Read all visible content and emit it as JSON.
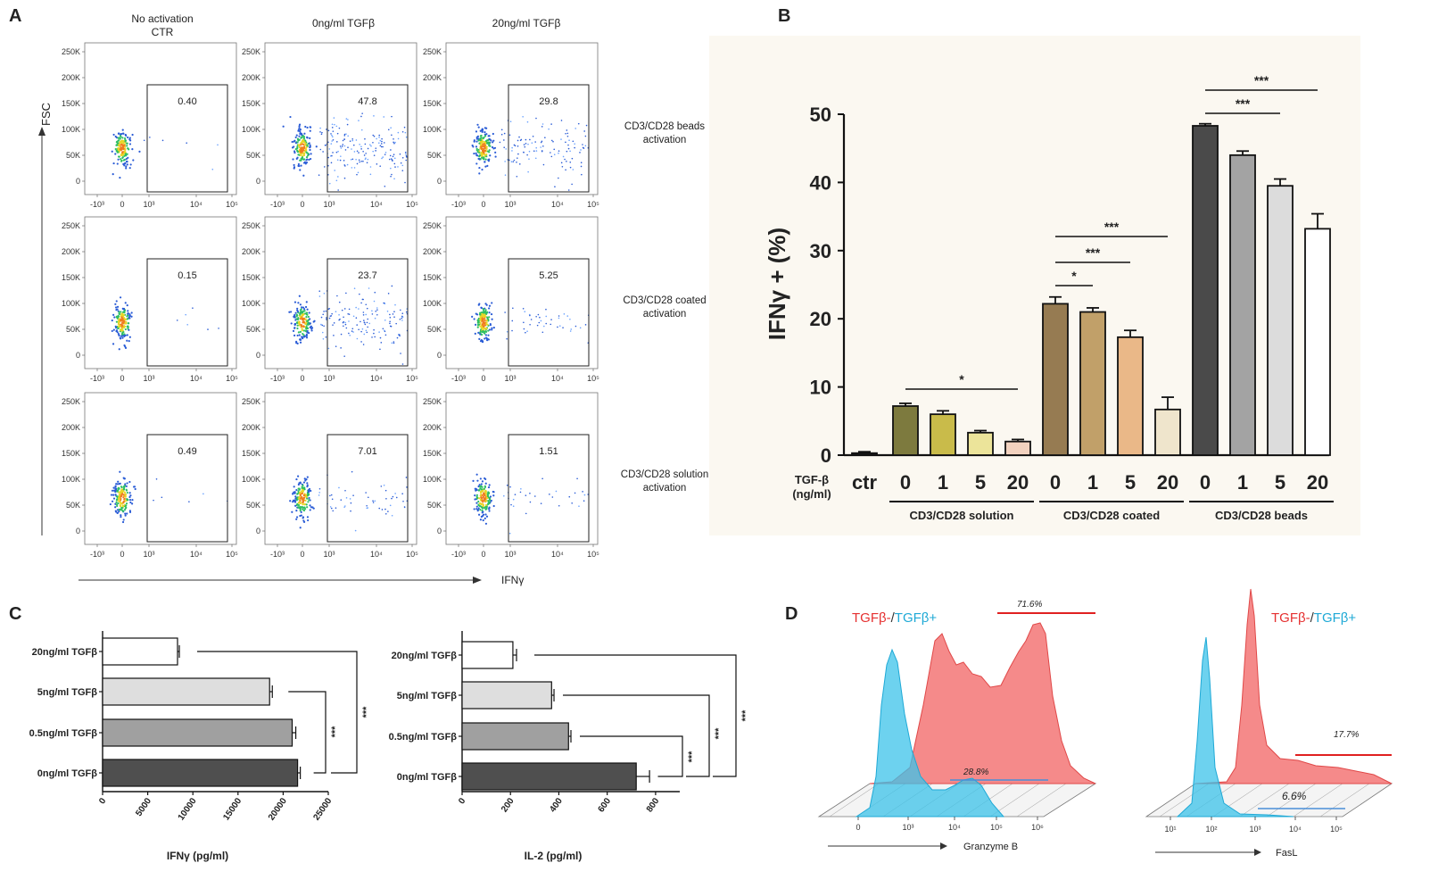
{
  "panel_labels": [
    "A",
    "B",
    "C",
    "D"
  ],
  "panel_a": {
    "columns": [
      "No activation\nCTR",
      "0ng/ml TGFβ",
      "20ng/ml TGFβ"
    ],
    "rows": [
      "CD3/CD28 beads\nactivation",
      "CD3/CD28 coated\nactivation",
      "CD3/CD28  solution\nactivation"
    ],
    "gate_values": [
      [
        "0.40",
        "47.8",
        "29.8"
      ],
      [
        "0.15",
        "23.7",
        "5.25"
      ],
      [
        "0.49",
        "7.01",
        "1.51"
      ]
    ],
    "y_ticks": [
      "250K",
      "200K",
      "150K",
      "100K",
      "50K",
      "0"
    ],
    "x_ticks": [
      "-10³",
      "0",
      "10³",
      "10⁴",
      "10⁵"
    ],
    "y_axis_label": "FSC",
    "x_axis_label": "IFNγ"
  },
  "chart_data": [
    {
      "id": "B",
      "type": "bar",
      "ylabel": "IFNγ + (%)",
      "ylim": [
        0,
        50
      ],
      "yticks": [
        "0",
        "10",
        "20",
        "30",
        "40",
        "50"
      ],
      "xprefix": "TGF-β\n(ng/ml)",
      "ctr": {
        "label": "ctr",
        "value": 0.3,
        "error": 0.2,
        "color": "#1a1a1a"
      },
      "groups": [
        {
          "name": "CD3/CD28 solution",
          "categories": [
            "0",
            "1",
            "5",
            "20"
          ],
          "values": [
            7.2,
            6.0,
            3.3,
            2.0
          ],
          "errors": [
            0.4,
            0.5,
            0.3,
            0.3
          ],
          "colors": [
            "#7d7a3e",
            "#c9bb4a",
            "#ece49a",
            "#f2d2bf"
          ]
        },
        {
          "name": "CD3/CD28 coated",
          "categories": [
            "0",
            "1",
            "5",
            "20"
          ],
          "values": [
            22.2,
            21.0,
            17.3,
            6.7
          ],
          "errors": [
            1.0,
            0.6,
            1.0,
            1.8
          ],
          "colors": [
            "#967b52",
            "#c1a069",
            "#eab888",
            "#efe5cc"
          ]
        },
        {
          "name": "CD3/CD28 beads",
          "categories": [
            "0",
            "1",
            "5",
            "20"
          ],
          "values": [
            48.3,
            44.0,
            39.5,
            33.2
          ],
          "errors": [
            0.3,
            0.6,
            1.0,
            2.2
          ],
          "colors": [
            "#4a4a4a",
            "#a3a3a3",
            "#dcdcdc",
            "#ffffff"
          ]
        }
      ],
      "significance": [
        {
          "from": [
            0,
            0
          ],
          "to": [
            0,
            3
          ],
          "label": "*"
        },
        {
          "from": [
            1,
            0
          ],
          "to": [
            1,
            1
          ],
          "label": "*"
        },
        {
          "from": [
            1,
            0
          ],
          "to": [
            1,
            2
          ],
          "label": "***"
        },
        {
          "from": [
            1,
            0
          ],
          "to": [
            1,
            3
          ],
          "label": "***"
        },
        {
          "from": [
            2,
            0
          ],
          "to": [
            2,
            2
          ],
          "label": "***"
        },
        {
          "from": [
            2,
            0
          ],
          "to": [
            2,
            3
          ],
          "label": "***"
        }
      ]
    },
    {
      "id": "C1",
      "type": "bar",
      "orientation": "horizontal",
      "categories": [
        "20ng/ml TGFβ",
        "5ng/ml TGFβ",
        "0.5ng/ml TGFβ",
        "0ng/ml TGFβ"
      ],
      "values": [
        8300,
        18500,
        21000,
        21600
      ],
      "errors": [
        200,
        300,
        400,
        300
      ],
      "colors": [
        "#ffffff",
        "#dedede",
        "#a0a0a0",
        "#4f4f4f"
      ],
      "xlabel": "IFNγ (pg/ml)",
      "xlim": [
        0,
        25000
      ],
      "xticks": [
        "0",
        "5000",
        "10000",
        "15000",
        "20000",
        "25000"
      ],
      "brackets": [
        "***",
        "***"
      ]
    },
    {
      "id": "C2",
      "type": "bar",
      "orientation": "horizontal",
      "categories": [
        "20ng/ml TGFβ",
        "5ng/ml TGFβ",
        "0.5ng/ml TGFβ",
        "0ng/ml TGFβ"
      ],
      "values": [
        210,
        370,
        440,
        720
      ],
      "errors": [
        15,
        10,
        10,
        55
      ],
      "colors": [
        "#ffffff",
        "#dedede",
        "#a0a0a0",
        "#4f4f4f"
      ],
      "xlabel": "IL-2 (pg/ml)",
      "xlim": [
        0,
        900
      ],
      "xticks": [
        "0",
        "200",
        "400",
        "600",
        "800"
      ],
      "brackets": [
        "***",
        "***",
        "***"
      ]
    }
  ],
  "panel_d": {
    "legend_neg": "TGFβ-",
    "legend_sep": "/",
    "legend_pos": "TGFβ+",
    "color_neg": "#f26d6d",
    "color_pos": "#3cc3ea",
    "granzyme": {
      "xlabel": "Granzyme  B",
      "neg_pct": "71.6%",
      "pos_pct": "28.8%",
      "ticks": [
        "0",
        "10³",
        "10⁴",
        "10⁵",
        "10⁶"
      ]
    },
    "fasl": {
      "xlabel": "FasL",
      "neg_pct": "17.7%",
      "pos_pct": "6.6%",
      "ticks": [
        "10¹",
        "10²",
        "10³",
        "10⁴",
        "10⁵"
      ]
    }
  }
}
